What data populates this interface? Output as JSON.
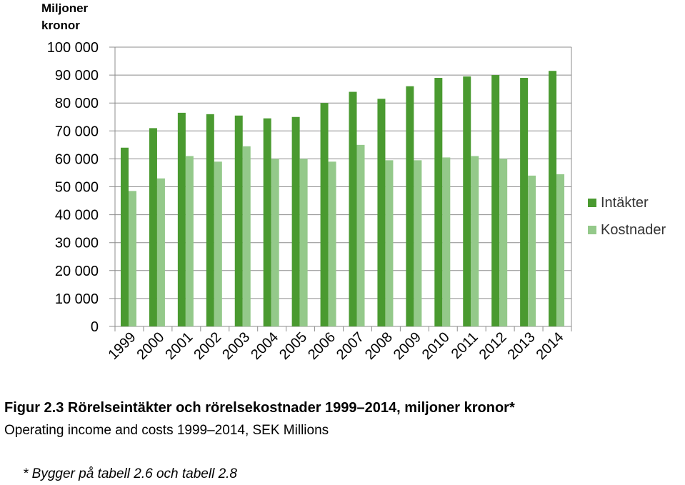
{
  "unit_label": "Miljoner\nkronor",
  "chart_data": {
    "type": "bar",
    "categories": [
      "1999",
      "2000",
      "2001",
      "2002",
      "2003",
      "2004",
      "2005",
      "2006",
      "2007",
      "2008",
      "2009",
      "2010",
      "2011",
      "2012",
      "2013",
      "2014"
    ],
    "series": [
      {
        "name": "Intäkter",
        "color": "#4a9a30",
        "values": [
          64000,
          71000,
          76500,
          76000,
          75500,
          74500,
          75000,
          80000,
          84000,
          81500,
          86000,
          89000,
          89500,
          90000,
          89000,
          91500
        ]
      },
      {
        "name": "Kostnader",
        "color": "#94c98a",
        "values": [
          48500,
          53000,
          61000,
          59000,
          64500,
          60000,
          60000,
          59000,
          65000,
          59500,
          59500,
          60500,
          61000,
          60000,
          54000,
          54500
        ]
      }
    ],
    "y_ticks": [
      "0",
      "10 000",
      "20 000",
      "30 000",
      "40 000",
      "50 000",
      "60 000",
      "70 000",
      "80 000",
      "90 000",
      "100 000"
    ],
    "ylim": [
      0,
      100000
    ],
    "grid": true,
    "legend_position": "right"
  },
  "caption": {
    "title": "Figur 2.3 Rörelseintäkter och rörelsekostnader 1999–2014, miljoner kronor*",
    "subtitle": "Operating income and costs 1999–2014, SEK Millions",
    "note": "* Bygger på tabell 2.6 och tabell 2.8"
  }
}
